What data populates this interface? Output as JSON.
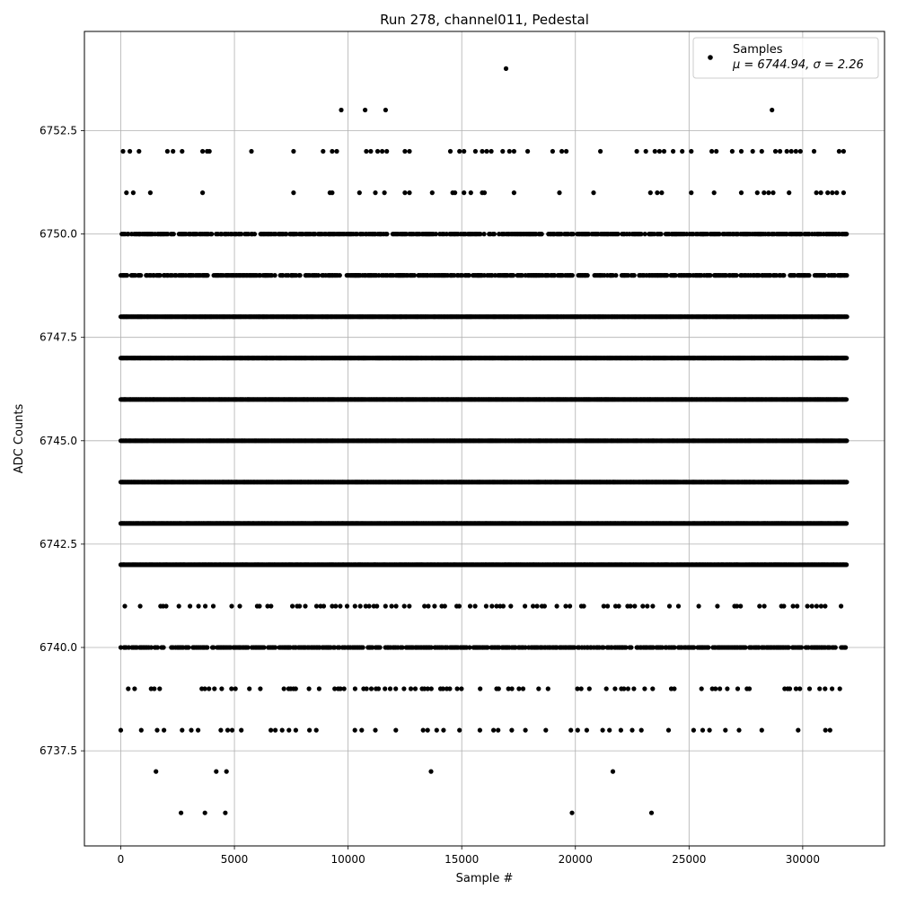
{
  "chart_data": {
    "type": "scatter",
    "title": "Run 278, channel011, Pedestal",
    "xlabel": "Sample #",
    "ylabel": "ADC Counts",
    "xlim": [
      -1600,
      33600
    ],
    "ylim": [
      6735.2,
      6754.9
    ],
    "x_ticks": [
      0,
      5000,
      10000,
      15000,
      20000,
      25000,
      30000
    ],
    "x_tick_labels": [
      "0",
      "5000",
      "10000",
      "15000",
      "20000",
      "25000",
      "30000"
    ],
    "y_ticks": [
      6737.5,
      6740.0,
      6742.5,
      6745.0,
      6747.5,
      6750.0,
      6752.5
    ],
    "y_tick_labels": [
      "6737.5",
      "6740.0",
      "6742.5",
      "6745.0",
      "6747.5",
      "6750.0",
      "6752.5"
    ],
    "grid": true,
    "legend": {
      "placement": "top-right",
      "label": "Samples",
      "stats_text": "μ = 6744.94, σ = 2.26"
    },
    "marker_color": "#000000",
    "series": [
      {
        "name": "Samples",
        "levels": [
          {
            "y": 6744,
            "x_range": [
              0,
              31950
            ],
            "density": "dense"
          },
          {
            "y": 6745,
            "x_range": [
              0,
              31950
            ],
            "density": "dense"
          },
          {
            "y": 6746,
            "x_range": [
              0,
              31950
            ],
            "density": "dense"
          },
          {
            "y": 6742,
            "x_range": [
              0,
              31950
            ],
            "density": "dense"
          },
          {
            "y": 6743,
            "x_range": [
              0,
              31950
            ],
            "density": "dense"
          },
          {
            "y": 6747,
            "x_range": [
              0,
              31950
            ],
            "density": "dense"
          },
          {
            "y": 6748,
            "x_range": [
              0,
              31950
            ],
            "density": "dense"
          },
          {
            "y": 6749,
            "x_range": [
              0,
              31950
            ],
            "density": "medium"
          },
          {
            "y": 6740,
            "x_range": [
              0,
              31950
            ],
            "density": "medium"
          },
          {
            "y": 6750,
            "x_range": [
              0,
              31950
            ],
            "density": "medium"
          },
          {
            "y": 6741,
            "x_range": [
              0,
              31950
            ],
            "density": "sparse"
          },
          {
            "y": 6739,
            "x_range": [
              0,
              31950
            ],
            "density": "sparse"
          }
        ],
        "points": [
          [
            100,
            6752
          ],
          [
            400,
            6752
          ],
          [
            800,
            6752
          ],
          [
            2050,
            6752
          ],
          [
            2300,
            6752
          ],
          [
            2700,
            6752
          ],
          [
            3600,
            6752
          ],
          [
            3800,
            6752
          ],
          [
            3900,
            6752
          ],
          [
            5750,
            6752
          ],
          [
            7600,
            6752
          ],
          [
            8900,
            6752
          ],
          [
            9300,
            6752
          ],
          [
            9500,
            6752
          ],
          [
            10800,
            6752
          ],
          [
            11000,
            6752
          ],
          [
            11300,
            6752
          ],
          [
            11500,
            6752
          ],
          [
            11700,
            6752
          ],
          [
            12500,
            6752
          ],
          [
            12700,
            6752
          ],
          [
            14500,
            6752
          ],
          [
            14900,
            6752
          ],
          [
            15100,
            6752
          ],
          [
            15600,
            6752
          ],
          [
            15900,
            6752
          ],
          [
            16100,
            6752
          ],
          [
            16300,
            6752
          ],
          [
            16800,
            6752
          ],
          [
            17100,
            6752
          ],
          [
            17300,
            6752
          ],
          [
            17900,
            6752
          ],
          [
            19000,
            6752
          ],
          [
            19400,
            6752
          ],
          [
            19600,
            6752
          ],
          [
            21100,
            6752
          ],
          [
            22700,
            6752
          ],
          [
            23100,
            6752
          ],
          [
            23500,
            6752
          ],
          [
            23700,
            6752
          ],
          [
            23900,
            6752
          ],
          [
            24300,
            6752
          ],
          [
            24700,
            6752
          ],
          [
            25100,
            6752
          ],
          [
            26000,
            6752
          ],
          [
            26200,
            6752
          ],
          [
            26900,
            6752
          ],
          [
            27300,
            6752
          ],
          [
            27800,
            6752
          ],
          [
            28200,
            6752
          ],
          [
            28800,
            6752
          ],
          [
            29000,
            6752
          ],
          [
            29300,
            6752
          ],
          [
            29500,
            6752
          ],
          [
            29700,
            6752
          ],
          [
            29900,
            6752
          ],
          [
            30500,
            6752
          ],
          [
            31600,
            6752
          ],
          [
            31800,
            6752
          ],
          [
            250,
            6751
          ],
          [
            550,
            6751
          ],
          [
            1300,
            6751
          ],
          [
            3600,
            6751
          ],
          [
            7600,
            6751
          ],
          [
            9200,
            6751
          ],
          [
            9300,
            6751
          ],
          [
            10500,
            6751
          ],
          [
            11200,
            6751
          ],
          [
            11600,
            6751
          ],
          [
            12500,
            6751
          ],
          [
            12700,
            6751
          ],
          [
            13700,
            6751
          ],
          [
            14600,
            6751
          ],
          [
            14700,
            6751
          ],
          [
            15100,
            6751
          ],
          [
            15400,
            6751
          ],
          [
            15900,
            6751
          ],
          [
            16000,
            6751
          ],
          [
            17300,
            6751
          ],
          [
            19300,
            6751
          ],
          [
            20800,
            6751
          ],
          [
            23300,
            6751
          ],
          [
            23600,
            6751
          ],
          [
            23800,
            6751
          ],
          [
            25100,
            6751
          ],
          [
            26100,
            6751
          ],
          [
            27300,
            6751
          ],
          [
            28000,
            6751
          ],
          [
            28300,
            6751
          ],
          [
            28500,
            6751
          ],
          [
            28700,
            6751
          ],
          [
            29400,
            6751
          ],
          [
            30600,
            6751
          ],
          [
            30800,
            6751
          ],
          [
            31100,
            6751
          ],
          [
            31300,
            6751
          ],
          [
            31500,
            6751
          ],
          [
            31800,
            6751
          ],
          [
            9700,
            6753
          ],
          [
            10750,
            6753
          ],
          [
            11650,
            6753
          ],
          [
            28650,
            6753
          ],
          [
            16950,
            6754
          ],
          [
            0,
            6738
          ],
          [
            900,
            6738
          ],
          [
            1600,
            6738
          ],
          [
            1900,
            6738
          ],
          [
            2700,
            6738
          ],
          [
            3100,
            6738
          ],
          [
            3400,
            6738
          ],
          [
            4400,
            6738
          ],
          [
            4700,
            6738
          ],
          [
            4900,
            6738
          ],
          [
            5300,
            6738
          ],
          [
            6600,
            6738
          ],
          [
            6800,
            6738
          ],
          [
            7100,
            6738
          ],
          [
            7400,
            6738
          ],
          [
            7700,
            6738
          ],
          [
            8300,
            6738
          ],
          [
            8600,
            6738
          ],
          [
            10300,
            6738
          ],
          [
            10600,
            6738
          ],
          [
            11200,
            6738
          ],
          [
            12100,
            6738
          ],
          [
            13300,
            6738
          ],
          [
            13500,
            6738
          ],
          [
            13900,
            6738
          ],
          [
            14200,
            6738
          ],
          [
            14900,
            6738
          ],
          [
            15800,
            6738
          ],
          [
            16400,
            6738
          ],
          [
            16600,
            6738
          ],
          [
            17200,
            6738
          ],
          [
            17800,
            6738
          ],
          [
            18700,
            6738
          ],
          [
            19800,
            6738
          ],
          [
            20100,
            6738
          ],
          [
            20500,
            6738
          ],
          [
            21200,
            6738
          ],
          [
            21500,
            6738
          ],
          [
            22000,
            6738
          ],
          [
            22500,
            6738
          ],
          [
            22900,
            6738
          ],
          [
            24100,
            6738
          ],
          [
            25200,
            6738
          ],
          [
            25600,
            6738
          ],
          [
            25900,
            6738
          ],
          [
            26600,
            6738
          ],
          [
            27200,
            6738
          ],
          [
            28200,
            6738
          ],
          [
            29800,
            6738
          ],
          [
            31000,
            6738
          ],
          [
            31200,
            6738
          ],
          [
            1550,
            6737
          ],
          [
            4200,
            6737
          ],
          [
            4650,
            6737
          ],
          [
            13650,
            6737
          ],
          [
            21650,
            6737
          ],
          [
            2650,
            6736
          ],
          [
            3700,
            6736
          ],
          [
            4600,
            6736
          ],
          [
            19850,
            6736
          ],
          [
            23350,
            6736
          ]
        ]
      }
    ]
  }
}
